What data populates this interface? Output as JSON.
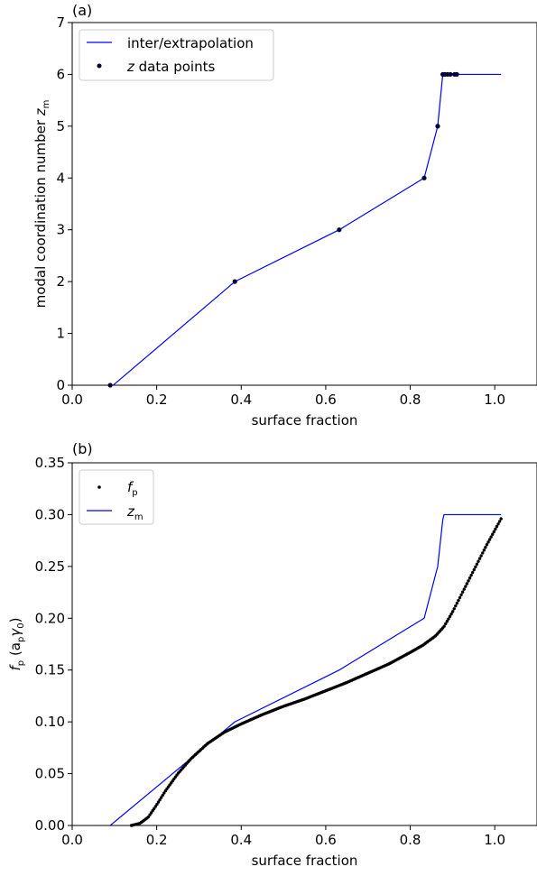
{
  "chart_data": [
    {
      "panel_label": "(a)",
      "type": "line",
      "xlabel": "surface fraction",
      "ylabel": "modal coordination number ",
      "ylabel_sym": "z",
      "ylabel_sub": "m",
      "xlim": [
        0.0,
        1.1
      ],
      "ylim": [
        0,
        7
      ],
      "xticks": [
        "0.0",
        "0.2",
        "0.4",
        "0.6",
        "0.8",
        "1.0"
      ],
      "yticks": [
        "0",
        "1",
        "2",
        "3",
        "4",
        "5",
        "6",
        "7"
      ],
      "legend": {
        "placement": "top-left",
        "line_label": "inter/extrapolation",
        "points_sym": "z",
        "points_label": " data points"
      },
      "line_color": "#0000ff",
      "points_color": "#000033",
      "line": {
        "x": [
          0.097,
          0.385,
          0.632,
          0.833,
          0.865,
          0.877,
          0.88,
          0.89,
          0.91,
          1.015
        ],
        "y": [
          0,
          2,
          3,
          4,
          5,
          6,
          6,
          6,
          6,
          6
        ]
      },
      "points": {
        "x": [
          0.09,
          0.385,
          0.632,
          0.833,
          0.865,
          0.877,
          0.882,
          0.888,
          0.895,
          0.905,
          0.91
        ],
        "y": [
          0,
          2,
          3,
          4,
          5,
          6,
          6,
          6,
          6,
          6,
          6
        ]
      }
    },
    {
      "panel_label": "(b)",
      "type": "line",
      "xlabel": "surface fraction",
      "ylabel_sym": "f",
      "ylabel_sub": "p",
      "ylabel_rest": " (a",
      "ylabel_sub2": "p",
      "ylabel_gamma": "γ",
      "ylabel_sub3": "0",
      "ylabel_end": ")",
      "xlim": [
        0.0,
        1.1
      ],
      "ylim": [
        0.0,
        0.35
      ],
      "xticks": [
        "0.0",
        "0.2",
        "0.4",
        "0.6",
        "0.8",
        "1.0"
      ],
      "yticks": [
        "0.00",
        "0.05",
        "0.10",
        "0.15",
        "0.20",
        "0.25",
        "0.30",
        "0.35"
      ],
      "legend": {
        "placement": "top-left",
        "points_sym": "f",
        "points_sub": "p",
        "line_sym": "z",
        "line_sub": "m"
      },
      "line_color": "#0000ff",
      "points_color": "#000000",
      "zm_line": {
        "x": [
          0.09,
          0.385,
          0.632,
          0.833,
          0.865,
          0.877,
          0.88,
          1.015
        ],
        "y": [
          0.0,
          0.1,
          0.15,
          0.2,
          0.25,
          0.295,
          0.3,
          0.3
        ]
      },
      "fp_curve": {
        "x": [
          0.14,
          0.16,
          0.18,
          0.2,
          0.22,
          0.25,
          0.28,
          0.32,
          0.36,
          0.4,
          0.45,
          0.5,
          0.55,
          0.6,
          0.65,
          0.7,
          0.75,
          0.8,
          0.83,
          0.86,
          0.88,
          0.9,
          0.92,
          0.95,
          0.98,
          1.015
        ],
        "y": [
          0.0,
          0.002,
          0.008,
          0.02,
          0.033,
          0.05,
          0.064,
          0.079,
          0.09,
          0.098,
          0.107,
          0.115,
          0.122,
          0.13,
          0.138,
          0.147,
          0.156,
          0.167,
          0.174,
          0.183,
          0.192,
          0.206,
          0.222,
          0.246,
          0.27,
          0.296
        ]
      }
    }
  ]
}
